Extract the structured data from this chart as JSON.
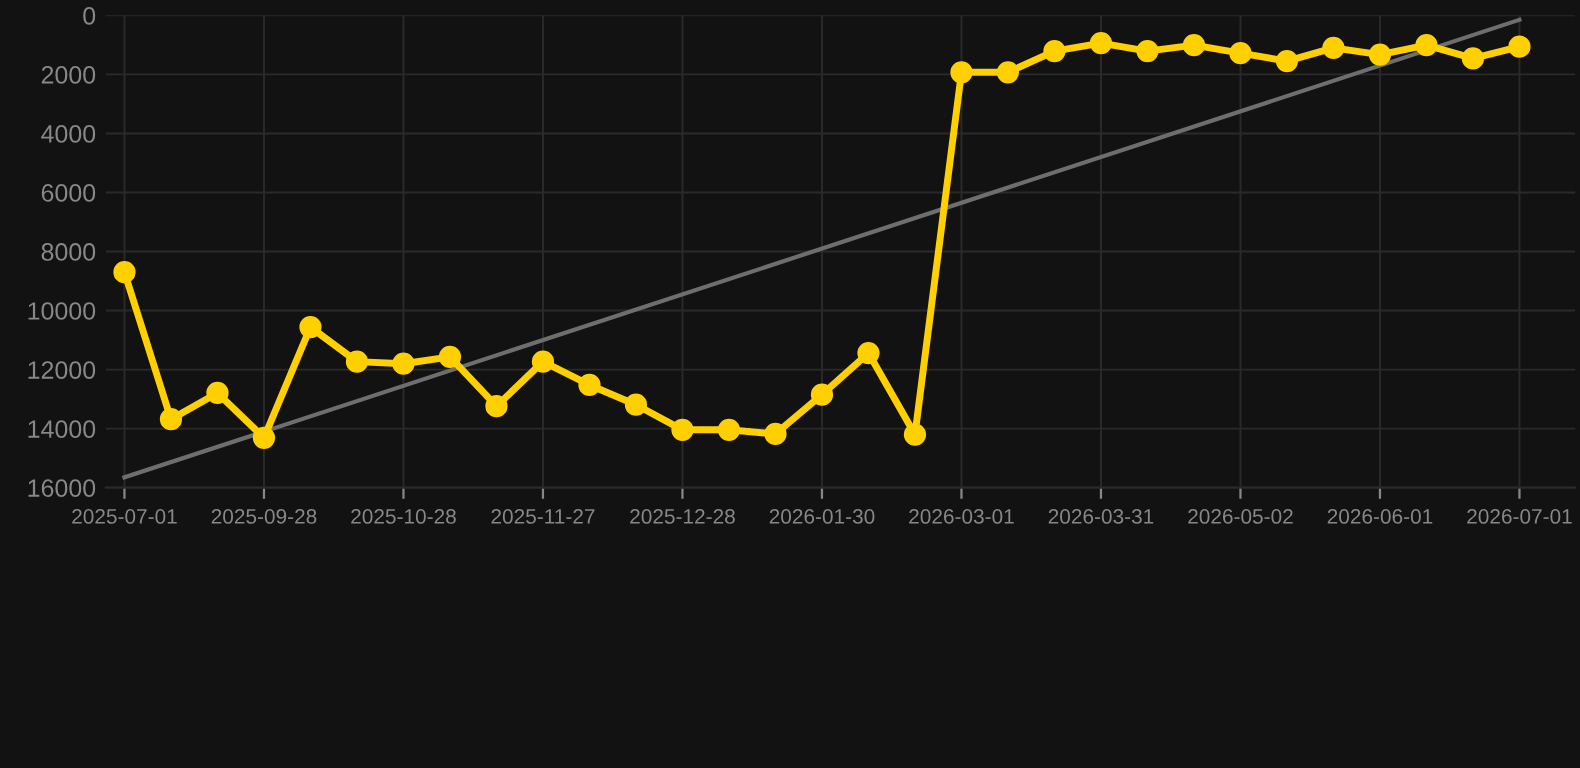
{
  "chart_data": {
    "type": "line",
    "categories": [
      "2025-07-01",
      null,
      null,
      "2025-09-28",
      null,
      null,
      "2025-10-28",
      null,
      null,
      "2025-11-27",
      null,
      null,
      "2025-12-28",
      null,
      null,
      "2026-01-30",
      null,
      null,
      "2026-03-01",
      null,
      null,
      "2026-03-31",
      null,
      null,
      "2026-05-02",
      null,
      null,
      "2026-06-01",
      null,
      null,
      "2026-07-01"
    ],
    "series": [
      {
        "color": "#ffd000",
        "marker": "circle",
        "values": [
          8700,
          13680,
          12790,
          14310,
          10560,
          11730,
          11800,
          11570,
          13240,
          11730,
          12520,
          13190,
          14040,
          14040,
          14180,
          12850,
          11440,
          14200,
          1930,
          1930,
          1210,
          940,
          1210,
          1010,
          1280,
          1550,
          1100,
          1330,
          1010,
          1460,
          1060
        ]
      },
      {
        "type": "line",
        "color": "#6e6e6e",
        "marker": "none",
        "values": [
          15650,
          null,
          null,
          null,
          null,
          null,
          null,
          null,
          null,
          null,
          null,
          null,
          null,
          null,
          null,
          null,
          null,
          null,
          null,
          null,
          null,
          null,
          null,
          null,
          null,
          null,
          null,
          null,
          null,
          null,
          150
        ]
      }
    ],
    "ylim": [
      16000,
      0
    ],
    "yticks": [
      0,
      2000,
      4000,
      6000,
      8000,
      10000,
      12000,
      14000,
      16000
    ],
    "grid": true
  }
}
